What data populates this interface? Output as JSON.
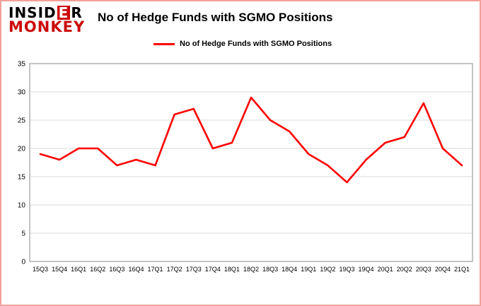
{
  "logo": {
    "part1": "INSID",
    "highlight": "E",
    "part2": "R",
    "line2": "MONKEY"
  },
  "header": {
    "title": "No of Hedge Funds with SGMO Positions"
  },
  "legend": {
    "label": "No of Hedge Funds with SGMO Positions",
    "color": "#ff0000"
  },
  "chart_data": {
    "type": "line",
    "title": "No of Hedge Funds with SGMO Positions",
    "categories": [
      "15Q3",
      "15Q4",
      "16Q1",
      "16Q2",
      "16Q3",
      "16Q4",
      "17Q1",
      "17Q2",
      "17Q3",
      "17Q4",
      "18Q1",
      "18Q2",
      "18Q3",
      "18Q4",
      "19Q1",
      "19Q2",
      "19Q3",
      "19Q4",
      "20Q1",
      "20Q2",
      "20Q3",
      "20Q4",
      "21Q1"
    ],
    "values": [
      19,
      18,
      20,
      20,
      17,
      18,
      17,
      26,
      27,
      20,
      21,
      29,
      25,
      23,
      19,
      17,
      14,
      18,
      21,
      22,
      28,
      20,
      17
    ],
    "xlabel": "",
    "ylabel": "",
    "ylim": [
      0,
      35
    ],
    "yticks": [
      0,
      5,
      10,
      15,
      20,
      25,
      30,
      35
    ],
    "grid": true,
    "line_color": "#ff0000",
    "legend_position": "top"
  }
}
